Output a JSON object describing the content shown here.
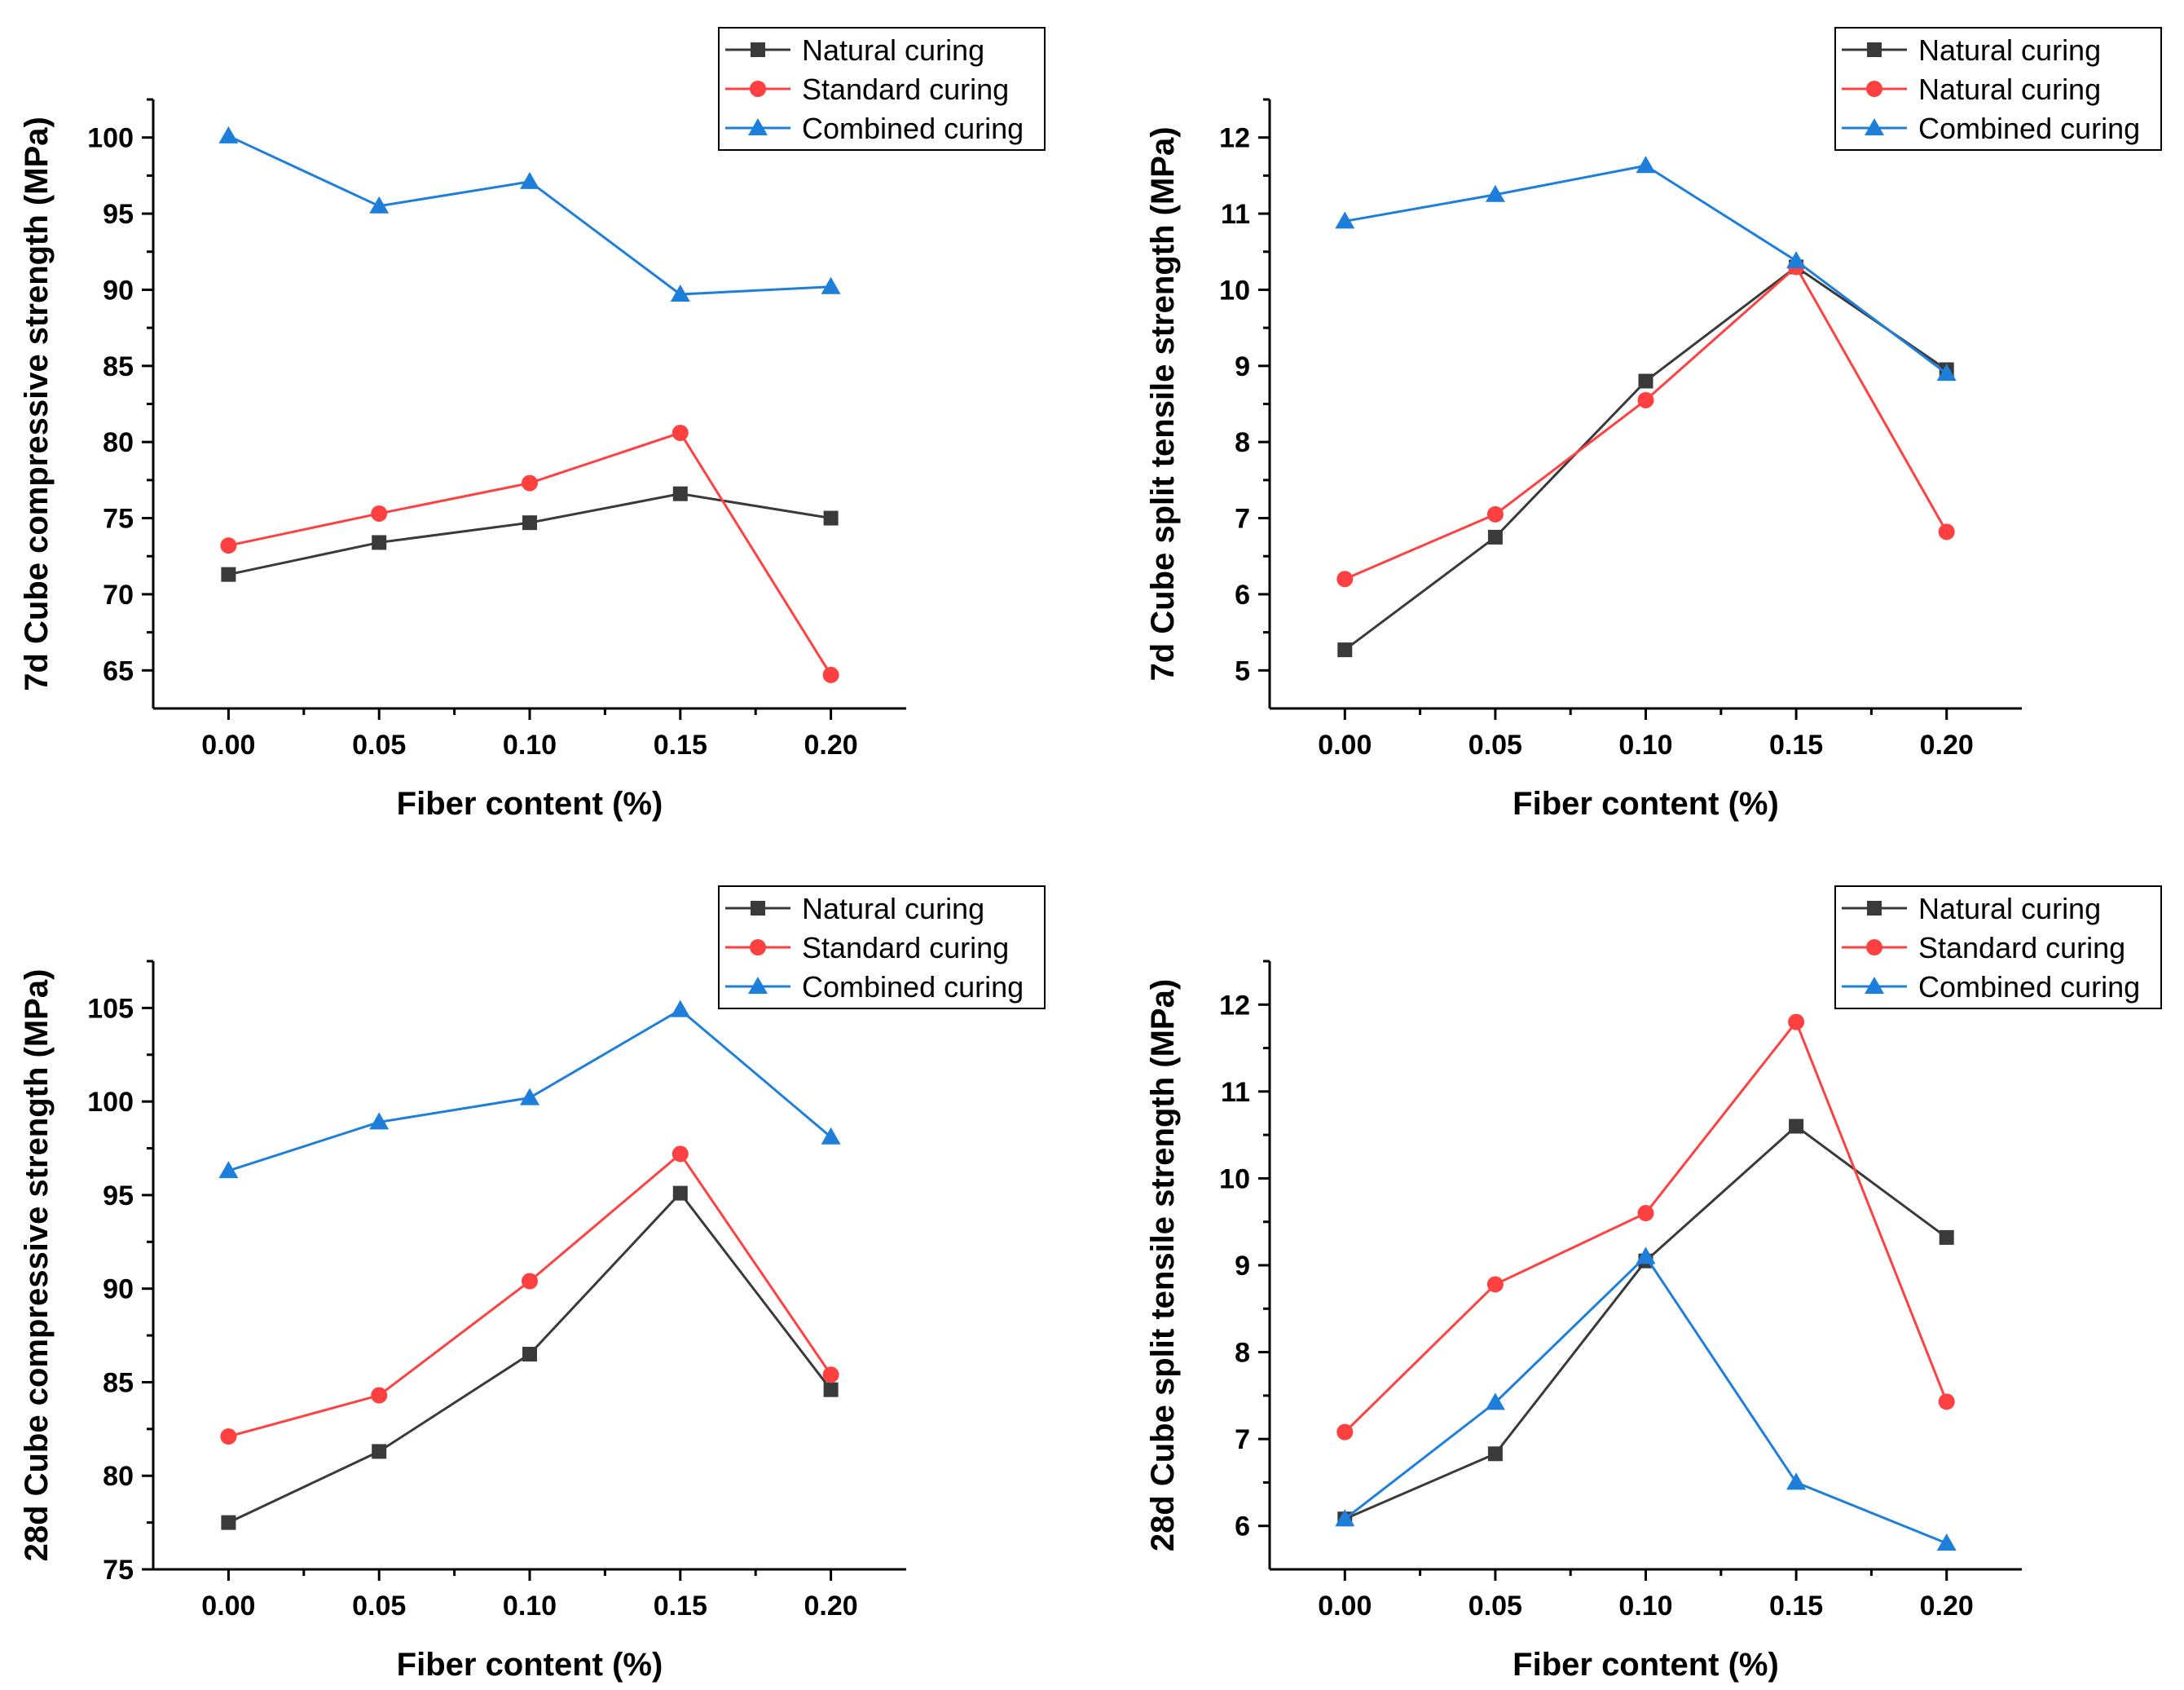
{
  "chart_data": [
    {
      "type": "line",
      "xlabel": "Fiber content (%)",
      "ylabel": "7d Cube compressive strength (MPa)",
      "x": [
        0.0,
        0.05,
        0.1,
        0.15,
        0.2
      ],
      "x_tick_labels": [
        "0.00",
        "0.05",
        "0.10",
        "0.15",
        "0.20"
      ],
      "xlim": [
        -0.025,
        0.225
      ],
      "ylim": [
        62.5,
        102.5
      ],
      "y_ticks": [
        65,
        70,
        75,
        80,
        85,
        90,
        95,
        100
      ],
      "legend_position": "top-right",
      "series": [
        {
          "name": "Natural curing",
          "marker": "square",
          "color": "#3a3a3a",
          "values": [
            71.3,
            73.4,
            74.7,
            76.6,
            75.0
          ]
        },
        {
          "name": "Standard curing",
          "marker": "circle",
          "color": "#ff4040",
          "values": [
            73.2,
            75.3,
            77.3,
            80.6,
            64.7
          ]
        },
        {
          "name": "Combined curing",
          "marker": "triangle",
          "color": "#1e7fdb",
          "values": [
            100.1,
            95.5,
            97.1,
            89.7,
            90.2
          ]
        }
      ]
    },
    {
      "type": "line",
      "xlabel": "Fiber content (%)",
      "ylabel": "7d Cube split tensile strength (MPa)",
      "x": [
        0.0,
        0.05,
        0.1,
        0.15,
        0.2
      ],
      "x_tick_labels": [
        "0.00",
        "0.05",
        "0.10",
        "0.15",
        "0.20"
      ],
      "xlim": [
        -0.025,
        0.225
      ],
      "ylim": [
        4.5,
        12.5
      ],
      "y_ticks": [
        5,
        6,
        7,
        8,
        9,
        10,
        11,
        12
      ],
      "legend_position": "top-right",
      "series": [
        {
          "name": "Natural curing",
          "marker": "square",
          "color": "#3a3a3a",
          "values": [
            5.27,
            6.75,
            8.8,
            10.3,
            8.95
          ]
        },
        {
          "name": "Natural curing",
          "marker": "circle",
          "color": "#ff4040",
          "values": [
            6.2,
            7.05,
            8.55,
            10.3,
            6.82
          ]
        },
        {
          "name": "Combined curing",
          "marker": "triangle",
          "color": "#1e7fdb",
          "values": [
            10.9,
            11.25,
            11.63,
            10.38,
            8.9
          ]
        }
      ]
    },
    {
      "type": "line",
      "xlabel": "Fiber content (%)",
      "ylabel": "28d Cube compressive strength (MPa)",
      "x": [
        0.0,
        0.05,
        0.1,
        0.15,
        0.2
      ],
      "x_tick_labels": [
        "0.00",
        "0.05",
        "0.10",
        "0.15",
        "0.20"
      ],
      "xlim": [
        -0.025,
        0.225
      ],
      "ylim": [
        75,
        107.5
      ],
      "y_ticks": [
        75,
        80,
        85,
        90,
        95,
        100,
        105
      ],
      "legend_position": "top-right",
      "series": [
        {
          "name": "Natural curing",
          "marker": "square",
          "color": "#3a3a3a",
          "values": [
            77.5,
            81.3,
            86.5,
            95.1,
            84.6
          ]
        },
        {
          "name": "Standard curing",
          "marker": "circle",
          "color": "#ff4040",
          "values": [
            82.1,
            84.3,
            90.4,
            97.2,
            85.4
          ]
        },
        {
          "name": "Combined curing",
          "marker": "triangle",
          "color": "#1e7fdb",
          "values": [
            96.3,
            98.9,
            100.2,
            104.9,
            98.1
          ]
        }
      ]
    },
    {
      "type": "line",
      "xlabel": "Fiber content (%)",
      "ylabel": "28d Cube split tensile strength (MPa)",
      "x": [
        0.0,
        0.05,
        0.1,
        0.15,
        0.2
      ],
      "x_tick_labels": [
        "0.00",
        "0.05",
        "0.10",
        "0.15",
        "0.20"
      ],
      "xlim": [
        -0.025,
        0.225
      ],
      "ylim": [
        5.5,
        12.5
      ],
      "y_ticks": [
        6,
        7,
        8,
        9,
        10,
        11,
        12
      ],
      "legend_position": "top-right",
      "series": [
        {
          "name": "Natural curing",
          "marker": "square",
          "color": "#3a3a3a",
          "values": [
            6.08,
            6.83,
            9.05,
            10.6,
            9.32
          ]
        },
        {
          "name": "Standard curing",
          "marker": "circle",
          "color": "#ff4040",
          "values": [
            7.08,
            8.78,
            9.6,
            11.8,
            7.43
          ]
        },
        {
          "name": "Combined curing",
          "marker": "triangle",
          "color": "#1e7fdb",
          "values": [
            6.08,
            7.42,
            9.1,
            6.5,
            5.8
          ]
        }
      ]
    }
  ]
}
